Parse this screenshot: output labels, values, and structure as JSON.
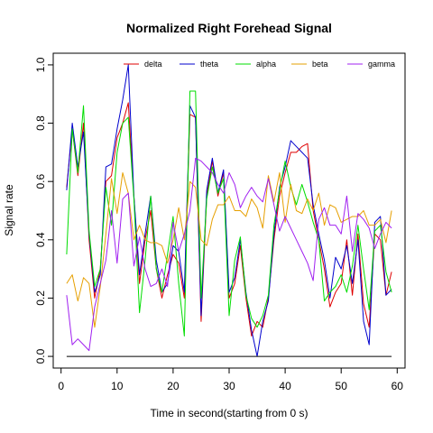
{
  "chart_data": {
    "type": "line",
    "title": "Normalized Right Forehead Signal",
    "xlabel": "Time in second(starting from 0 s)",
    "ylabel": "Signal rate",
    "xlim": [
      -1.4,
      61.4
    ],
    "ylim": [
      -0.04,
      1.04
    ],
    "x_ticks": [
      0,
      10,
      20,
      30,
      40,
      50,
      60
    ],
    "y_ticks": [
      0.0,
      0.2,
      0.4,
      0.6,
      0.8,
      1.0
    ],
    "x_tick_labels": [
      "0",
      "10",
      "20",
      "30",
      "40",
      "50",
      "60"
    ],
    "y_tick_labels": [
      "0.0",
      "0.2",
      "0.4",
      "0.6",
      "0.8",
      "1.0"
    ],
    "legend_position": "top",
    "grid": false,
    "x": [
      1,
      2,
      3,
      4,
      5,
      6,
      7,
      8,
      9,
      10,
      11,
      12,
      13,
      14,
      15,
      16,
      17,
      18,
      19,
      20,
      21,
      22,
      23,
      24,
      25,
      26,
      27,
      28,
      29,
      30,
      31,
      32,
      33,
      34,
      35,
      36,
      37,
      38,
      39,
      40,
      41,
      42,
      43,
      44,
      45,
      46,
      47,
      48,
      49,
      50,
      51,
      52,
      53,
      54,
      55,
      56,
      57,
      58,
      59
    ],
    "series": [
      {
        "name": "delta",
        "color": "#DF0000",
        "values": [
          0.58,
          0.78,
          0.62,
          0.8,
          0.4,
          0.2,
          0.3,
          0.6,
          0.62,
          0.75,
          0.8,
          0.87,
          0.55,
          0.25,
          0.4,
          0.5,
          0.3,
          0.2,
          0.28,
          0.35,
          0.32,
          0.2,
          0.83,
          0.82,
          0.12,
          0.55,
          0.67,
          0.55,
          0.63,
          0.2,
          0.25,
          0.38,
          0.2,
          0.07,
          0.12,
          0.1,
          0.2,
          0.4,
          0.55,
          0.63,
          0.7,
          0.7,
          0.72,
          0.73,
          0.5,
          0.4,
          0.3,
          0.17,
          0.22,
          0.25,
          0.4,
          0.21,
          0.42,
          0.18,
          0.1,
          0.42,
          0.4,
          0.21,
          0.29
        ]
      },
      {
        "name": "theta",
        "color": "#0000CD",
        "values": [
          0.57,
          0.8,
          0.65,
          0.77,
          0.42,
          0.22,
          0.28,
          0.65,
          0.66,
          0.78,
          0.88,
          1.0,
          0.55,
          0.28,
          0.42,
          0.55,
          0.33,
          0.22,
          0.25,
          0.38,
          0.36,
          0.22,
          0.86,
          0.82,
          0.14,
          0.57,
          0.68,
          0.56,
          0.64,
          0.22,
          0.27,
          0.4,
          0.22,
          0.09,
          0.0,
          0.12,
          0.19,
          0.42,
          0.58,
          0.65,
          0.74,
          0.72,
          0.7,
          0.68,
          0.52,
          0.42,
          0.33,
          0.2,
          0.34,
          0.3,
          0.38,
          0.25,
          0.4,
          0.12,
          0.04,
          0.46,
          0.48,
          0.21,
          0.23
        ]
      },
      {
        "name": "alpha",
        "color": "#00DD00",
        "values": [
          0.35,
          0.78,
          0.63,
          0.86,
          0.43,
          0.24,
          0.3,
          0.58,
          0.45,
          0.7,
          0.8,
          0.82,
          0.54,
          0.15,
          0.33,
          0.55,
          0.3,
          0.22,
          0.35,
          0.48,
          0.25,
          0.07,
          0.91,
          0.91,
          0.2,
          0.54,
          0.65,
          0.56,
          0.61,
          0.14,
          0.33,
          0.41,
          0.21,
          0.13,
          0.1,
          0.14,
          0.21,
          0.45,
          0.57,
          0.67,
          0.58,
          0.52,
          0.59,
          0.53,
          0.46,
          0.4,
          0.19,
          0.22,
          0.24,
          0.28,
          0.22,
          0.31,
          0.45,
          0.3,
          0.16,
          0.43,
          0.45,
          0.29,
          0.22
        ]
      },
      {
        "name": "beta",
        "color": "#E69F00",
        "values": [
          0.25,
          0.28,
          0.19,
          0.27,
          0.25,
          0.1,
          0.24,
          0.42,
          0.61,
          0.49,
          0.63,
          0.56,
          0.4,
          0.45,
          0.4,
          0.39,
          0.39,
          0.38,
          0.32,
          0.4,
          0.51,
          0.4,
          0.6,
          0.58,
          0.4,
          0.38,
          0.47,
          0.52,
          0.52,
          0.55,
          0.5,
          0.5,
          0.48,
          0.54,
          0.51,
          0.44,
          0.62,
          0.53,
          0.63,
          0.46,
          0.59,
          0.5,
          0.49,
          0.54,
          0.5,
          0.56,
          0.45,
          0.52,
          0.51,
          0.46,
          0.47,
          0.48,
          0.48,
          0.5,
          0.45,
          0.45,
          0.47,
          0.39,
          0.5
        ]
      },
      {
        "name": "gamma",
        "color": "#A020F0",
        "values": [
          0.21,
          0.04,
          0.06,
          0.04,
          0.02,
          0.17,
          0.25,
          0.33,
          0.5,
          0.32,
          0.54,
          0.56,
          0.31,
          0.41,
          0.3,
          0.24,
          0.25,
          0.3,
          0.24,
          0.46,
          0.36,
          0.42,
          0.5,
          0.68,
          0.67,
          0.65,
          0.63,
          0.59,
          0.56,
          0.63,
          0.59,
          0.51,
          0.55,
          0.58,
          0.55,
          0.53,
          0.61,
          0.52,
          0.43,
          0.48,
          0.44,
          0.4,
          0.36,
          0.32,
          0.26,
          0.47,
          0.51,
          0.45,
          0.45,
          0.42,
          0.55,
          0.36,
          0.49,
          0.47,
          0.44,
          0.37,
          0.42,
          0.46,
          0.44
        ]
      },
      {
        "name": "",
        "color": "#000000",
        "values": [
          0,
          0,
          0,
          0,
          0,
          0,
          0,
          0,
          0,
          0,
          0,
          0,
          0,
          0,
          0,
          0,
          0,
          0,
          0,
          0,
          0,
          0,
          0,
          0,
          0,
          0,
          0,
          0,
          0,
          0,
          0,
          0,
          0,
          0,
          0,
          0,
          0,
          0,
          0,
          0,
          0,
          0,
          0,
          0,
          0,
          0,
          0,
          0,
          0,
          0,
          0,
          0,
          0,
          0,
          0,
          0,
          0,
          0,
          0
        ]
      }
    ]
  }
}
